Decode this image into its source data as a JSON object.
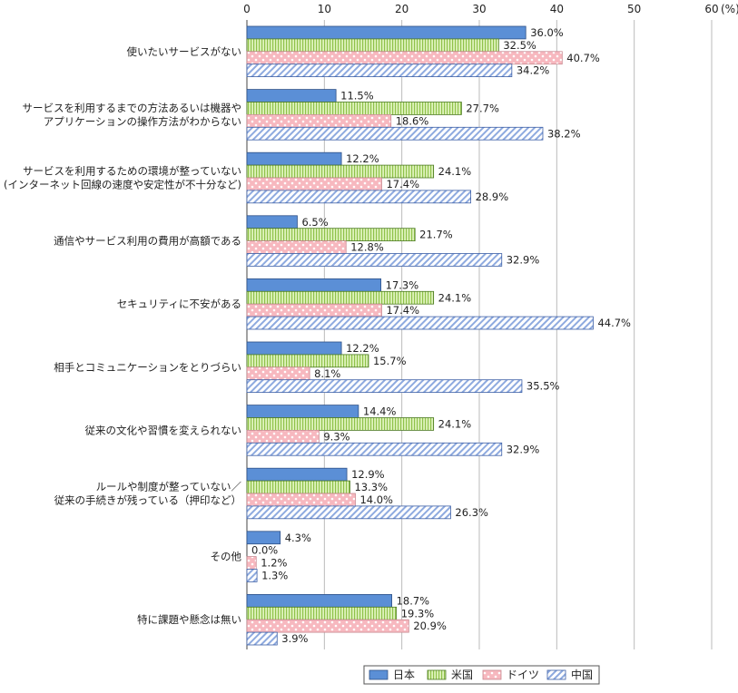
{
  "chart_data": {
    "type": "bar",
    "orientation": "horizontal",
    "unit_label": "(%)",
    "xlim": [
      0,
      60
    ],
    "xticks": [
      0,
      10,
      20,
      30,
      40,
      50,
      60
    ],
    "grid": true,
    "legend_position": "bottom-right",
    "categories": [
      [
        "使いたいサービスがない"
      ],
      [
        "サービスを利用するまでの方法あるいは機器や",
        "アプリケーションの操作方法がわからない"
      ],
      [
        "サービスを利用するための環境が整っていない",
        "(インターネット回線の速度や安定性が不十分など)"
      ],
      [
        "通信やサービス利用の費用が高額である"
      ],
      [
        "セキュリティに不安がある"
      ],
      [
        "相手とコミュニケーションをとりづらい"
      ],
      [
        "従来の文化や習慣を変えられない"
      ],
      [
        "ルールや制度が整っていない／",
        "従来の手続きが残っている（押印など）"
      ],
      [
        "その他"
      ],
      [
        "特に課題や懸念は無い"
      ]
    ],
    "series": [
      {
        "name": "日本",
        "color": "#5b8fd6",
        "pattern": "solid",
        "values": [
          36.0,
          11.5,
          12.2,
          6.5,
          17.3,
          12.2,
          14.4,
          12.9,
          4.3,
          18.7
        ]
      },
      {
        "name": "米国",
        "color": "#c5e58b",
        "pattern": "vertical-lines",
        "values": [
          32.5,
          27.7,
          24.1,
          21.7,
          24.1,
          15.7,
          24.1,
          13.3,
          0.0,
          19.3
        ]
      },
      {
        "name": "ドイツ",
        "color": "#f8c0c6",
        "pattern": "dots",
        "values": [
          40.7,
          18.6,
          17.4,
          12.8,
          17.4,
          8.1,
          9.3,
          14.0,
          1.2,
          20.9
        ]
      },
      {
        "name": "中国",
        "color": "#b7c9ee",
        "pattern": "diagonal-lines",
        "values": [
          34.2,
          38.2,
          28.9,
          32.9,
          44.7,
          35.5,
          32.9,
          26.3,
          1.3,
          3.9
        ]
      }
    ]
  }
}
